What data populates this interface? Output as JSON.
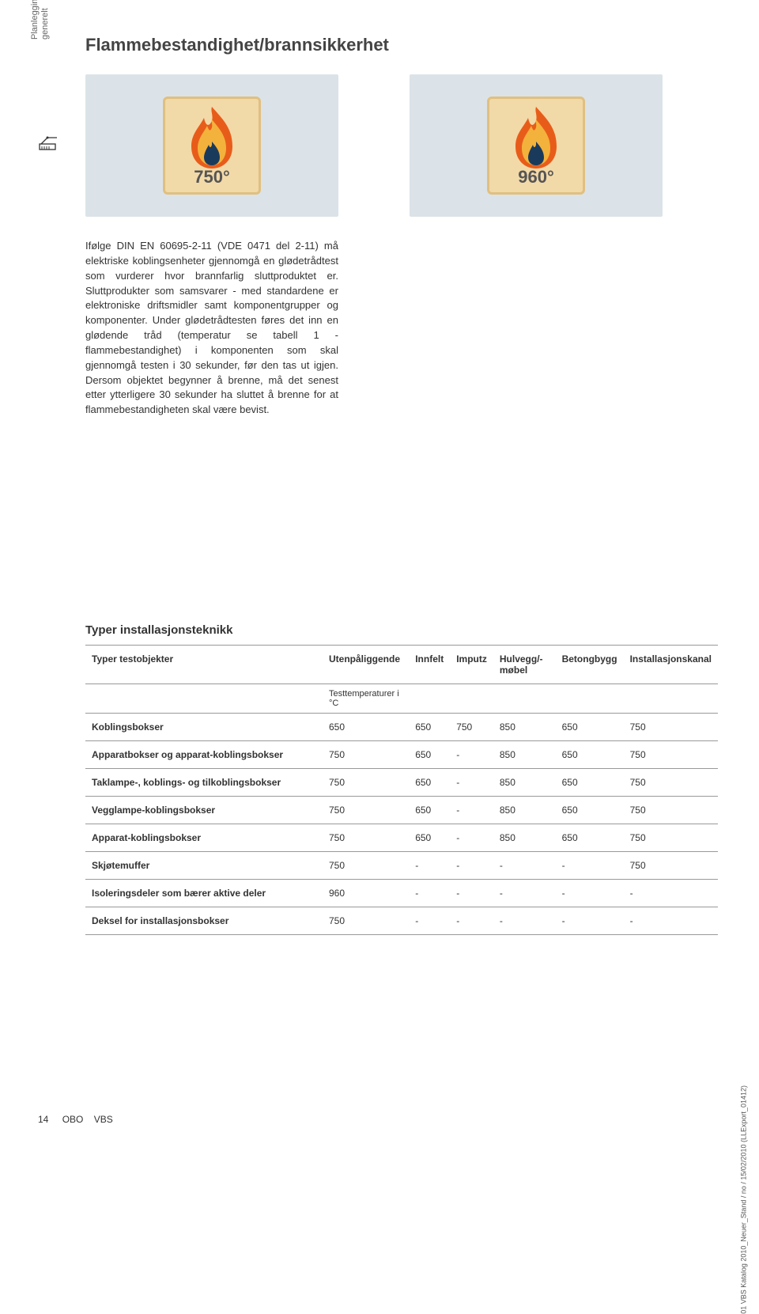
{
  "sidebar": {
    "label_line1": "Planleggingshjelp",
    "label_line2": "generelt"
  },
  "page": {
    "title": "Flammebestandighet/brannsikkerhet",
    "body_text": "Ifølge DIN EN 60695-2-11 (VDE 0471 del 2-11) må elektriske koblingsenheter gjennomgå en glødetrådtest som vurderer hvor brannfarlig sluttproduktet er. Sluttprodukter som samsvarer - med standardene er elektroniske driftsmidler samt komponentgrupper og komponenter. Under glødetrådtesten føres det inn en glødende tråd (temperatur se tabell 1 - flammebestandighet) i komponenten som skal gjennomgå testen i 30 sekunder, før den tas ut igjen. Dersom objektet begynner å brenne, må det senest etter ytterligere 30 sekunder ha sluttet å brenne for at flammebestandigheten skal være bevist."
  },
  "icons": {
    "badges": [
      {
        "temp": "750°"
      },
      {
        "temp": "960°"
      }
    ],
    "card_bg": "#dbe3e8",
    "badge_bg": "#f2d9a8",
    "badge_border": "#e0c080",
    "flame_outer": "#e85c1a",
    "flame_mid": "#f3b23c",
    "flame_inner": "#1a3a5c"
  },
  "table": {
    "title": "Typer installasjonsteknikk",
    "columns": [
      "Typer testobjekter",
      "Utenpåliggende",
      "Innfelt",
      "Imputz",
      "Hulvegg/-møbel",
      "Betongbygg",
      "Installasjonskanal"
    ],
    "sub_header": "Testtemperaturer i °C",
    "rows": [
      {
        "label": "Koblingsbokser",
        "values": [
          "650",
          "650",
          "750",
          "850",
          "650",
          "750"
        ]
      },
      {
        "label": "Apparatbokser og apparat-koblingsbokser",
        "values": [
          "750",
          "650",
          "-",
          "850",
          "650",
          "750"
        ]
      },
      {
        "label": "Taklampe-, koblings- og tilkoblingsbokser",
        "values": [
          "750",
          "650",
          "-",
          "850",
          "650",
          "750"
        ]
      },
      {
        "label": "Vegglampe-koblingsbokser",
        "values": [
          "750",
          "650",
          "-",
          "850",
          "650",
          "750"
        ]
      },
      {
        "label": "Apparat-koblingsbokser",
        "values": [
          "750",
          "650",
          "-",
          "850",
          "650",
          "750"
        ]
      },
      {
        "label": "Skjøtemuffer",
        "values": [
          "750",
          "-",
          "-",
          "-",
          "-",
          "750"
        ]
      },
      {
        "label": "Isoleringsdeler som bærer aktive deler",
        "values": [
          "960",
          "-",
          "-",
          "-",
          "-",
          "-"
        ]
      },
      {
        "label": "Deksel for installasjonsbokser",
        "values": [
          "750",
          "-",
          "-",
          "-",
          "-",
          "-"
        ]
      }
    ]
  },
  "footer": {
    "page_number": "14",
    "left": "OBO",
    "right": "VBS",
    "vertical_note": "01 VBS Katalog 2010_Neuer_Stand / no / 15/02/2010 (LLExport_01412)"
  }
}
